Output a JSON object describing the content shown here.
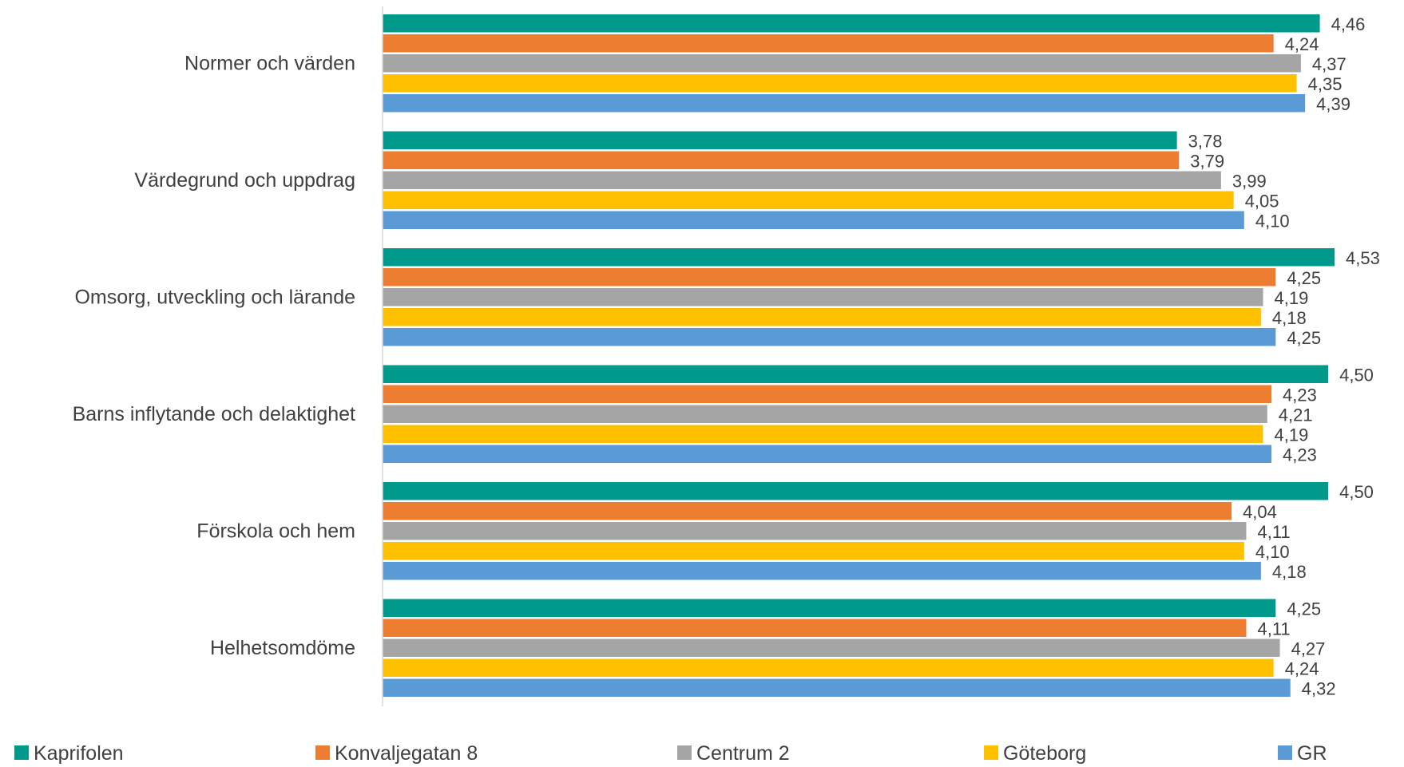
{
  "chart_data": {
    "type": "bar",
    "orientation": "horizontal",
    "categories": [
      "Normer och värden",
      "Värdegrund och uppdrag",
      "Omsorg, utveckling och lärande",
      "Barns inflytande och delaktighet",
      "Förskola och hem",
      "Helhetsomdöme"
    ],
    "series": [
      {
        "name": "Kaprifolen",
        "color": "#009A8C",
        "values": [
          4.46,
          3.78,
          4.53,
          4.5,
          4.5,
          4.25
        ],
        "labels": [
          "4,46",
          "3,78",
          "4,53",
          "4,50",
          "4,50",
          "4,25"
        ]
      },
      {
        "name": "Konvaljegatan 8",
        "color": "#ED7D31",
        "values": [
          4.24,
          3.79,
          4.25,
          4.23,
          4.04,
          4.11
        ],
        "labels": [
          "4,24",
          "3,79",
          "4,25",
          "4,23",
          "4,04",
          "4,11"
        ]
      },
      {
        "name": "Centrum 2",
        "color": "#A5A5A5",
        "values": [
          4.37,
          3.99,
          4.19,
          4.21,
          4.11,
          4.27
        ],
        "labels": [
          "4,37",
          "3,99",
          "4,19",
          "4,21",
          "4,11",
          "4,27"
        ]
      },
      {
        "name": "Göteborg",
        "color": "#FFC000",
        "values": [
          4.35,
          4.05,
          4.18,
          4.19,
          4.1,
          4.24
        ],
        "labels": [
          "4,35",
          "4,05",
          "4,18",
          "4,19",
          "4,10",
          "4,24"
        ]
      },
      {
        "name": "GR",
        "color": "#5B9BD5",
        "values": [
          4.39,
          4.1,
          4.25,
          4.23,
          4.18,
          4.32
        ],
        "labels": [
          "4,39",
          "4,10",
          "4,25",
          "4,23",
          "4,18",
          "4,32"
        ]
      }
    ],
    "xlim": [
      0,
      5
    ],
    "x_axis_visible": false,
    "grid": false,
    "legend_position": "bottom"
  }
}
